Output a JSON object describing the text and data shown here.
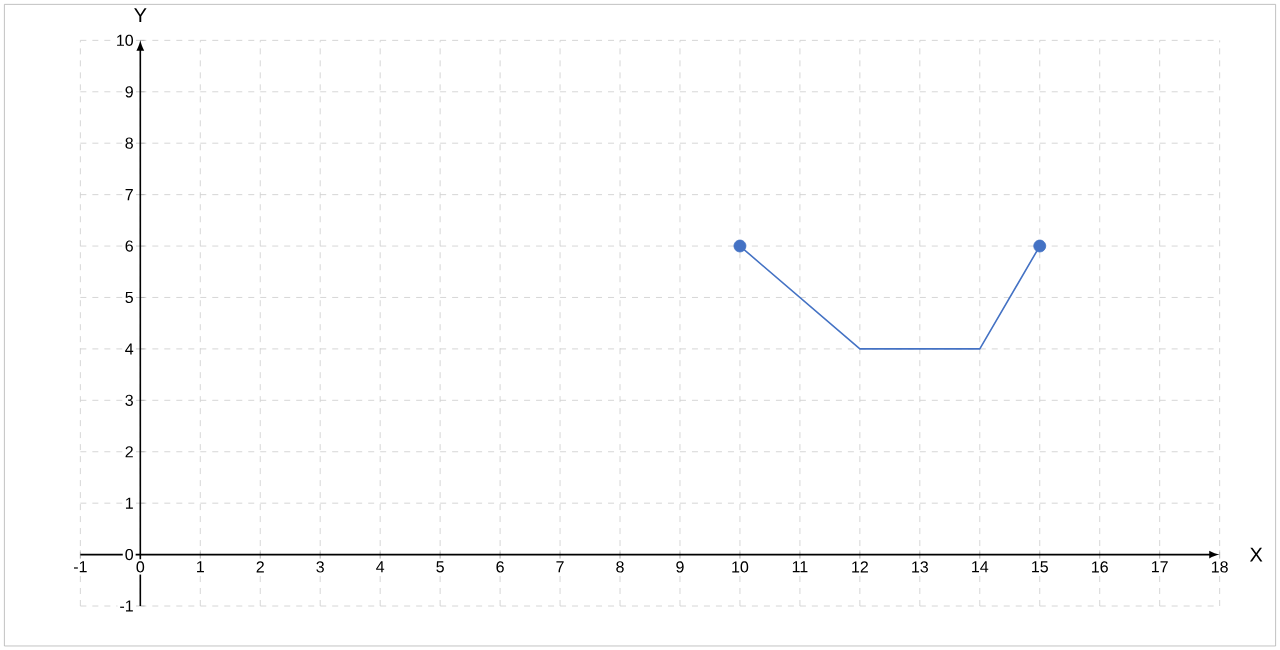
{
  "chart_data": {
    "type": "line",
    "xlabel": "X",
    "ylabel": "Y",
    "xlim": [
      -1,
      18
    ],
    "ylim": [
      -1,
      10
    ],
    "xticks": [
      -1,
      0,
      1,
      2,
      3,
      4,
      5,
      6,
      7,
      8,
      9,
      10,
      11,
      12,
      13,
      14,
      15,
      16,
      17,
      18
    ],
    "yticks": [
      -1,
      0,
      1,
      2,
      3,
      4,
      5,
      6,
      7,
      8,
      9,
      10
    ],
    "grid": true,
    "series": [
      {
        "type": "line",
        "color": "#4472c4",
        "marker": "none",
        "x": [
          10,
          12,
          14,
          15
        ],
        "values": [
          6,
          4,
          4,
          6
        ]
      },
      {
        "type": "scatter",
        "color": "#4472c4",
        "marker": "circle",
        "x": [
          10,
          15
        ],
        "values": [
          6,
          6
        ]
      }
    ]
  }
}
